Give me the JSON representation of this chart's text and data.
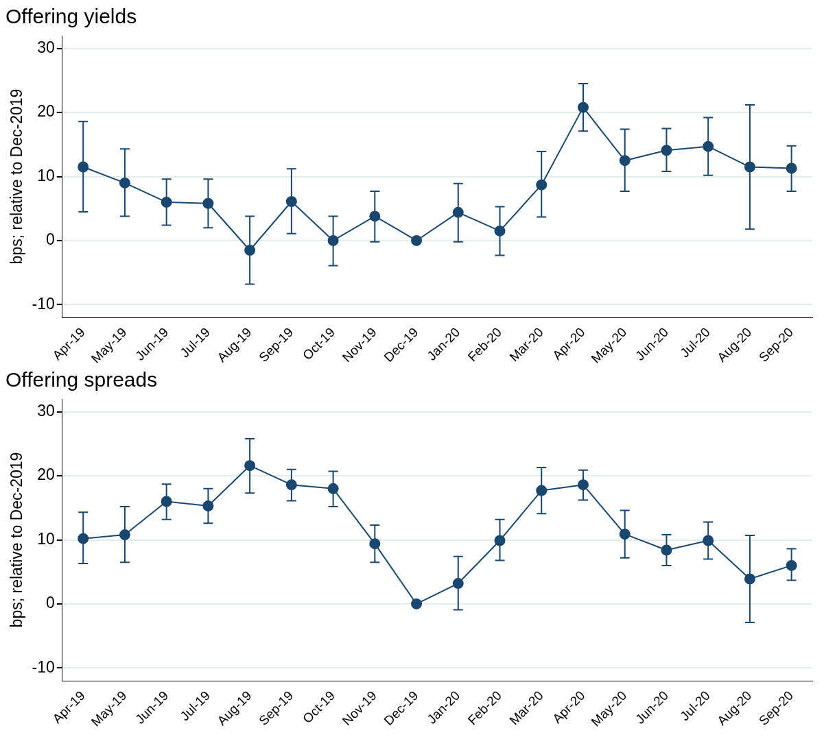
{
  "chart_data": [
    {
      "type": "line",
      "title": "Offering yields",
      "ylabel": "bps; relative to Dec-2019",
      "categories": [
        "Apr-19",
        "May-19",
        "Jun-19",
        "Jul-19",
        "Aug-19",
        "Sep-19",
        "Oct-19",
        "Nov-19",
        "Dec-19",
        "Jan-20",
        "Feb-20",
        "Mar-20",
        "Apr-20",
        "May-20",
        "Jun-20",
        "Jul-20",
        "Aug-20",
        "Sep-20"
      ],
      "series": [
        {
          "color": "#1a476f",
          "values": [
            11.5,
            9.0,
            6.0,
            5.8,
            -1.5,
            6.1,
            0,
            3.8,
            0,
            4.4,
            1.5,
            8.7,
            20.8,
            12.5,
            14.1,
            14.7,
            11.5,
            11.3
          ],
          "errors": [
            [
              4.5,
              18.6
            ],
            [
              3.8,
              14.3
            ],
            [
              2.4,
              9.6
            ],
            [
              2.0,
              9.6
            ],
            [
              -6.8,
              3.8
            ],
            [
              1.1,
              11.2
            ],
            [
              -3.9,
              3.8
            ],
            [
              -0.2,
              7.7
            ],
            null,
            [
              -0.2,
              8.9
            ],
            [
              -2.3,
              5.3
            ],
            [
              3.7,
              13.9
            ],
            [
              17.1,
              24.5
            ],
            [
              7.7,
              17.4
            ],
            [
              10.8,
              17.5
            ],
            [
              10.2,
              19.2
            ],
            [
              1.8,
              21.2
            ],
            [
              7.7,
              14.8
            ]
          ]
        }
      ],
      "ylim": [
        -12,
        32
      ],
      "yticks": [
        -10,
        0,
        10,
        20,
        30
      ],
      "grid": "y",
      "legend": false,
      "marker": "circle",
      "line_style": "solid"
    },
    {
      "type": "line",
      "title": "Offering spreads",
      "ylabel": "bps; relative to Dec-2019",
      "categories": [
        "Apr-19",
        "May-19",
        "Jun-19",
        "Jul-19",
        "Aug-19",
        "Sep-19",
        "Oct-19",
        "Nov-19",
        "Dec-19",
        "Jan-20",
        "Feb-20",
        "Mar-20",
        "Apr-20",
        "May-20",
        "Jun-20",
        "Jul-20",
        "Aug-20",
        "Sep-20"
      ],
      "series": [
        {
          "color": "#1a476f",
          "values": [
            10.2,
            10.8,
            16.0,
            15.3,
            21.6,
            18.6,
            18.0,
            9.4,
            0,
            3.2,
            9.9,
            17.7,
            18.6,
            10.9,
            8.4,
            9.9,
            3.9,
            6.0
          ],
          "errors": [
            [
              6.3,
              14.3
            ],
            [
              6.5,
              15.2
            ],
            [
              13.2,
              18.7
            ],
            [
              12.6,
              18.0
            ],
            [
              17.3,
              25.8
            ],
            [
              16.1,
              21.0
            ],
            [
              15.2,
              20.7
            ],
            [
              6.5,
              12.3
            ],
            null,
            [
              -0.9,
              7.4
            ],
            [
              6.8,
              13.2
            ],
            [
              14.1,
              21.3
            ],
            [
              16.2,
              20.9
            ],
            [
              7.2,
              14.6
            ],
            [
              6.0,
              10.8
            ],
            [
              7.0,
              12.8
            ],
            [
              -2.9,
              10.7
            ],
            [
              3.7,
              8.6
            ]
          ]
        }
      ],
      "ylim": [
        -12,
        32
      ],
      "yticks": [
        -10,
        0,
        10,
        20,
        30
      ],
      "grid": "y",
      "legend": false,
      "marker": "circle",
      "line_style": "solid"
    }
  ]
}
